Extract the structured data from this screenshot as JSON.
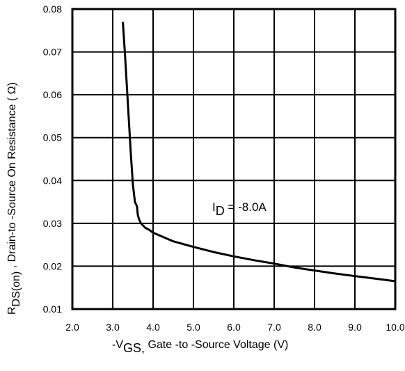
{
  "chart_data": {
    "type": "line",
    "xlim": [
      2.0,
      10.0
    ],
    "ylim": [
      0.01,
      0.08
    ],
    "x_ticks": [
      "2.0",
      "3.0",
      "4.0",
      "5.0",
      "6.0",
      "7.0",
      "8.0",
      "9.0",
      "10.0"
    ],
    "y_ticks": [
      "0.01",
      "0.02",
      "0.03",
      "0.04",
      "0.05",
      "0.06",
      "0.07",
      "0.08"
    ],
    "grid": true,
    "xlabel": {
      "prefix": "-V",
      "subscript": "GS,",
      "rest": " Gate -to -Source Voltage  (V)"
    },
    "ylabel": {
      "prefix": "R",
      "subscript": "DS(on)",
      "rest": " ,  Drain-to -Source On Resistance ( Ω)"
    },
    "annotation": {
      "prefix": "I",
      "subscript": "D",
      "rest": " = -8.0A"
    },
    "series": [
      {
        "x": [
          3.25,
          3.3,
          3.35,
          3.4,
          3.45,
          3.5,
          3.55,
          3.6,
          3.62,
          3.65,
          3.7,
          3.8,
          3.9,
          4.0,
          4.2,
          4.5,
          5.0,
          5.5,
          6.0,
          6.5,
          7.0,
          7.5,
          8.0,
          8.5,
          9.0,
          9.5,
          10.0
        ],
        "y": [
          0.077,
          0.07,
          0.062,
          0.054,
          0.046,
          0.039,
          0.035,
          0.034,
          0.032,
          0.031,
          0.03,
          0.029,
          0.0285,
          0.0278,
          0.027,
          0.0258,
          0.0245,
          0.0233,
          0.0223,
          0.0214,
          0.0206,
          0.0197,
          0.019,
          0.0183,
          0.0177,
          0.0171,
          0.0165
        ]
      }
    ],
    "colors": {
      "line": "#000000",
      "grid": "#000000"
    }
  }
}
